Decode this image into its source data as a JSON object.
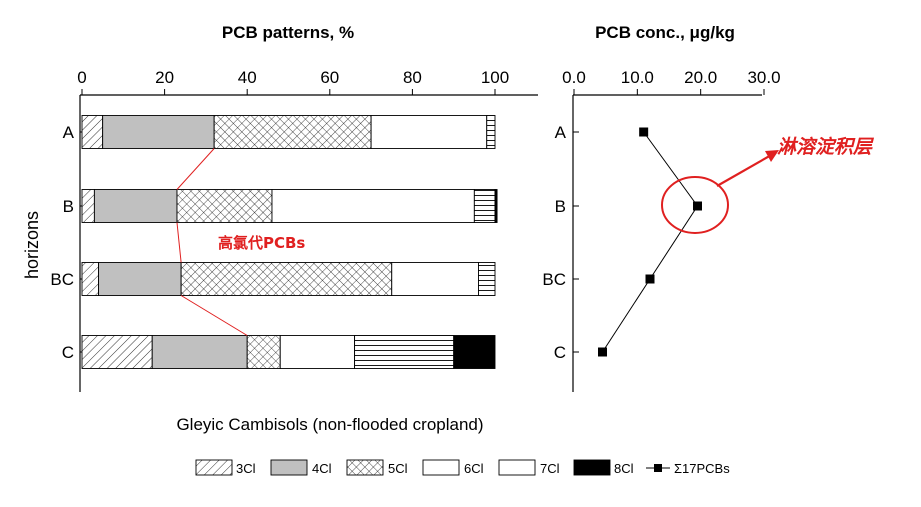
{
  "figure": {
    "left_title": "PCB patterns, %",
    "right_title": "PCB conc., μg/kg",
    "ylabel": "horizons",
    "xlabel": "Gleyic Cambisols (non-flooded cropland)",
    "annotation_left": "高氯代PCBs",
    "annotation_right": "淋溶淀积层"
  },
  "chart_data": [
    {
      "type": "bar",
      "orientation": "horizontal",
      "stacked": true,
      "title": "PCB patterns, %",
      "ylabel": "horizons",
      "categories": [
        "A",
        "B",
        "BC",
        "C"
      ],
      "xlim": [
        0,
        100
      ],
      "xticks": [
        0,
        20,
        40,
        60,
        80,
        100
      ],
      "series": [
        {
          "name": "3Cl",
          "pattern": "diagonal-hatch",
          "values": [
            5,
            3,
            4,
            17
          ]
        },
        {
          "name": "4Cl",
          "pattern": "gray",
          "values": [
            27,
            20,
            20,
            23
          ]
        },
        {
          "name": "5Cl",
          "pattern": "crosshatch",
          "values": [
            38,
            23,
            51,
            8
          ]
        },
        {
          "name": "6Cl",
          "pattern": "white",
          "values": [
            28,
            49,
            21,
            18
          ]
        },
        {
          "name": "7Cl",
          "pattern": "horizontal-lines",
          "values": [
            2,
            5,
            4,
            24
          ]
        },
        {
          "name": "8Cl",
          "pattern": "black",
          "values": [
            0,
            0.5,
            0,
            10
          ]
        }
      ]
    },
    {
      "type": "line",
      "title": "PCB conc., μg/kg",
      "categories": [
        "A",
        "B",
        "BC",
        "C"
      ],
      "xlim": [
        0,
        30
      ],
      "xticks": [
        "0.0",
        "10.0",
        "20.0",
        "30.0"
      ],
      "series": [
        {
          "name": "Σ17PCBs",
          "marker": "square",
          "values": [
            11.0,
            19.5,
            12.0,
            4.5
          ]
        }
      ]
    }
  ],
  "legend": [
    "3Cl",
    "4Cl",
    "5Cl",
    "6Cl",
    "7Cl",
    "8Cl",
    "Σ17PCBs"
  ],
  "colors": {
    "annotation": "#e02020",
    "gray_fill": "#c0c0c0",
    "black_fill": "#000000"
  }
}
